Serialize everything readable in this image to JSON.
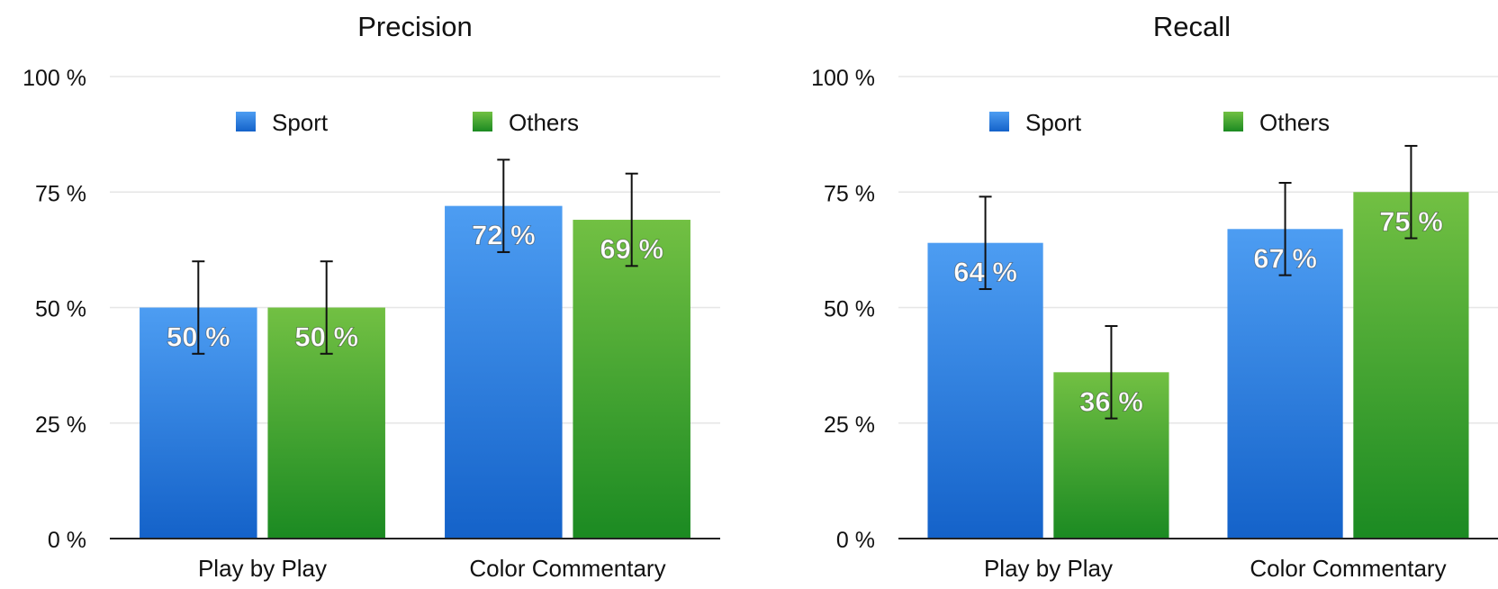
{
  "colors": {
    "sport_top": "#4d9df2",
    "sport_bottom": "#1462c9",
    "others_top": "#72c043",
    "others_bottom": "#1b8a22",
    "grid": "#e6e6e6",
    "axis": "#222222",
    "text": "#111111",
    "error_bar": "#111111",
    "value_label": "#ffffff"
  },
  "chart_data": [
    {
      "type": "bar",
      "title": "Precision",
      "categories": [
        "Play by Play",
        "Color Commentary"
      ],
      "series": [
        {
          "name": "Sport",
          "values": [
            50,
            72
          ],
          "error": [
            10,
            10
          ]
        },
        {
          "name": "Others",
          "values": [
            50,
            69
          ],
          "error": [
            10,
            10
          ]
        }
      ],
      "value_labels": [
        [
          "50 %",
          "72 %"
        ],
        [
          "50 %",
          "69 %"
        ]
      ],
      "ylim": [
        0,
        100
      ],
      "yticks": [
        0,
        25,
        50,
        75,
        100
      ],
      "ytick_labels": [
        "0 %",
        "25 %",
        "50 %",
        "75 %",
        "100 %"
      ],
      "grid": true,
      "legend_position": "top"
    },
    {
      "type": "bar",
      "title": "Recall",
      "categories": [
        "Play by Play",
        "Color Commentary"
      ],
      "series": [
        {
          "name": "Sport",
          "values": [
            64,
            67
          ],
          "error": [
            10,
            10
          ]
        },
        {
          "name": "Others",
          "values": [
            36,
            75
          ],
          "error": [
            10,
            10
          ]
        }
      ],
      "value_labels": [
        [
          "64 %",
          "67 %"
        ],
        [
          "36 %",
          "75 %"
        ]
      ],
      "ylim": [
        0,
        100
      ],
      "yticks": [
        0,
        25,
        50,
        75,
        100
      ],
      "ytick_labels": [
        "0 %",
        "25 %",
        "50 %",
        "75 %",
        "100 %"
      ],
      "grid": true,
      "legend_position": "top"
    }
  ]
}
